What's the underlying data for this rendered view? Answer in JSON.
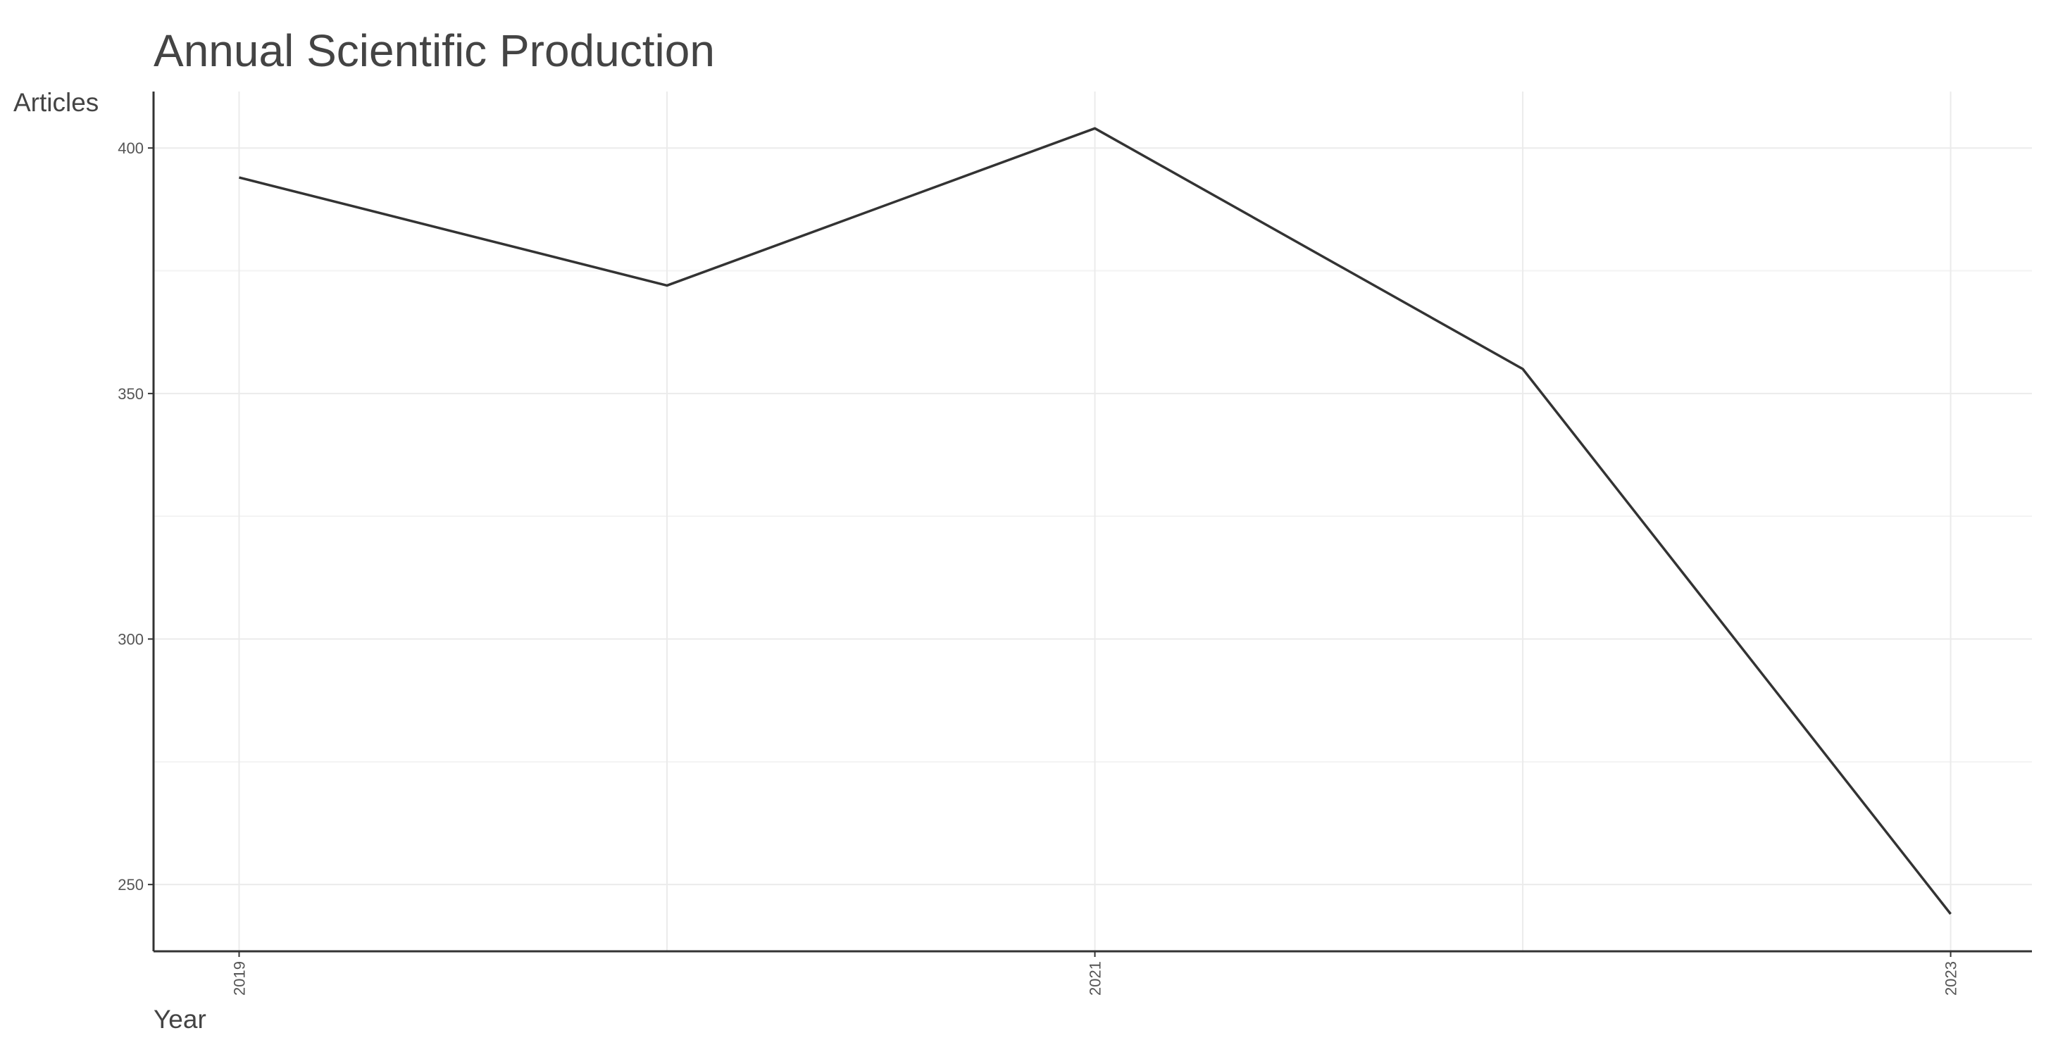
{
  "chart_data": {
    "type": "line",
    "title": "Annual Scientific Production",
    "x_label": "Year",
    "y_label": "Articles",
    "x": [
      2019,
      2020,
      2021,
      2022,
      2023
    ],
    "series": [
      {
        "color": "#333333",
        "values": [
          394,
          372,
          404,
          355,
          244
        ]
      }
    ],
    "xlim": [
      2018.8,
      2023.19
    ],
    "xticks": [
      2019,
      2021,
      2023
    ],
    "xminor": [
      2020,
      2022
    ],
    "ylim": [
      236.4,
      411.5
    ],
    "yticks": [
      250,
      300,
      350,
      400
    ],
    "yminor": [
      275,
      325,
      375
    ],
    "grid": true
  }
}
